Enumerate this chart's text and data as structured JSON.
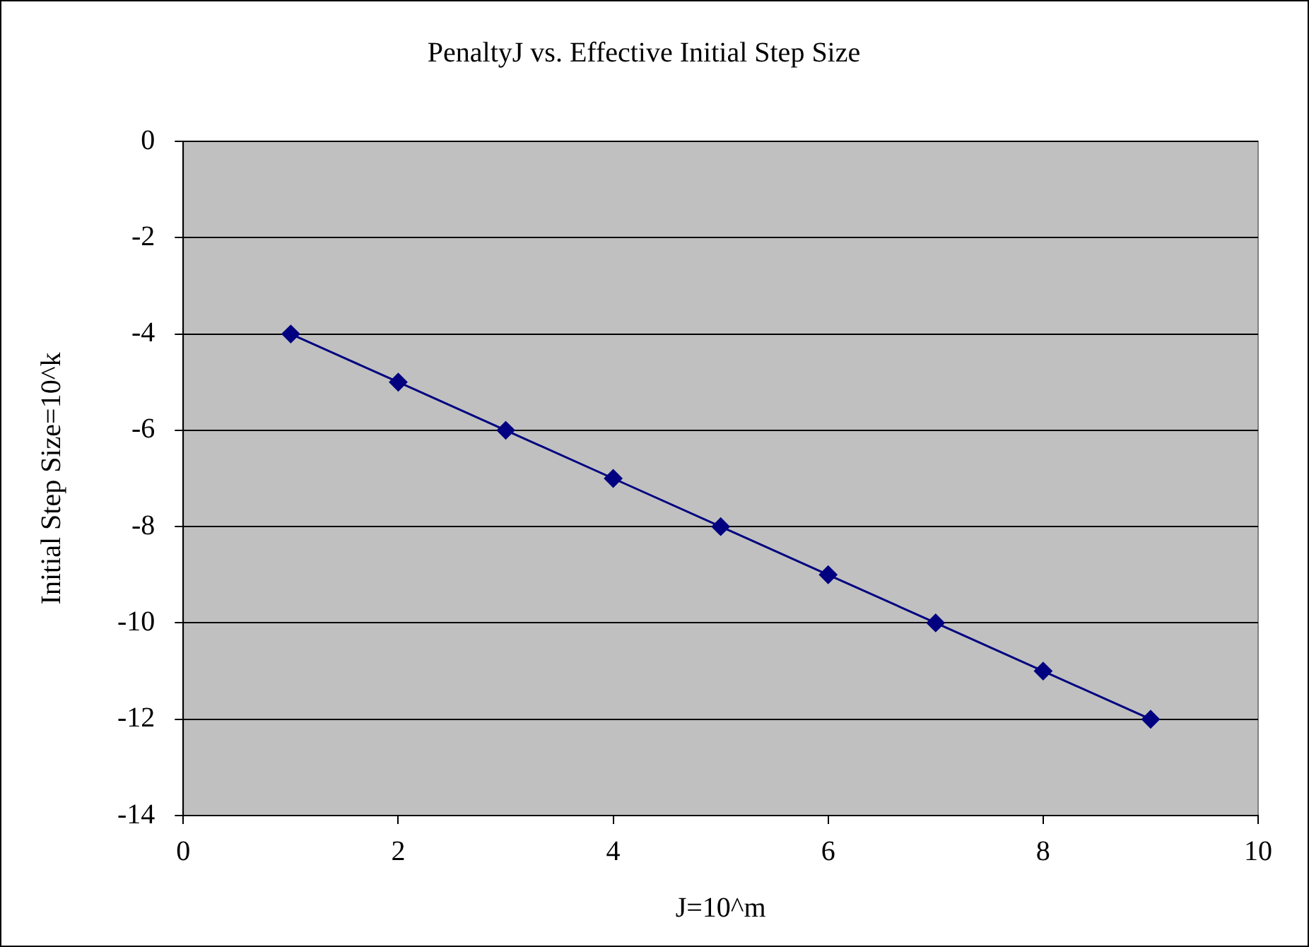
{
  "chart_data": {
    "type": "line",
    "title": "PenaltyJ vs. Effective Initial Step Size",
    "xlabel": "J=10^m",
    "ylabel": "Initial Step Size=10^k",
    "x": [
      1,
      2,
      3,
      4,
      5,
      6,
      7,
      8,
      9
    ],
    "series": [
      {
        "color": "#000080",
        "values": [
          -4,
          -5,
          -6,
          -7,
          -8,
          -9,
          -10,
          -11,
          -12
        ]
      }
    ],
    "xlim": [
      0,
      10
    ],
    "ylim": [
      -14,
      0
    ],
    "xticks": [
      0,
      2,
      4,
      6,
      8,
      10
    ],
    "yticks": [
      0,
      -2,
      -4,
      -6,
      -8,
      -10,
      -12,
      -14
    ],
    "grid": "y",
    "marker": "diamond",
    "line_style": "solid"
  }
}
